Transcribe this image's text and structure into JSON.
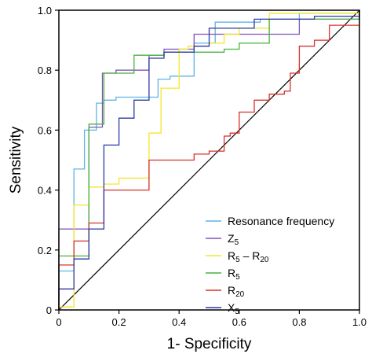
{
  "chart_data": {
    "type": "line",
    "xlabel": "1- Specificity",
    "ylabel": "Sensitivity",
    "xlim": [
      0,
      1
    ],
    "ylim": [
      0,
      1
    ],
    "xticks": [
      "0",
      "0.2",
      "0.4",
      "0.6",
      "0.8",
      "1.0"
    ],
    "yticks": [
      "0",
      "0.2",
      "0.4",
      "0.6",
      "0.8",
      "1.0"
    ],
    "grid": false,
    "legend_position": "bottom-right",
    "reference_line": {
      "x": [
        0,
        1
      ],
      "y": [
        0,
        1
      ],
      "color": "#000000"
    },
    "series": [
      {
        "name": "Resonance frequency",
        "legend_main": "Resonance frequency",
        "legend_sub": "",
        "color": "#5fb3e6",
        "x": [
          0,
          0,
          0.05,
          0.05,
          0.085,
          0.085,
          0.125,
          0.125,
          0.15,
          0.15,
          0.19,
          0.19,
          0.33,
          0.33,
          0.37,
          0.37,
          0.45,
          0.45,
          0.52,
          0.52,
          0.67,
          0.67,
          0.8,
          0.8,
          1.0,
          1.0
        ],
        "y": [
          0,
          0.13,
          0.13,
          0.47,
          0.47,
          0.6,
          0.6,
          0.69,
          0.69,
          0.7,
          0.7,
          0.71,
          0.71,
          0.77,
          0.77,
          0.78,
          0.78,
          0.89,
          0.89,
          0.96,
          0.96,
          0.97,
          0.97,
          0.99,
          0.99,
          1.0
        ]
      },
      {
        "name": "Z5",
        "legend_main": "Z",
        "legend_sub": "5",
        "color": "#8052b8",
        "x": [
          0,
          0,
          0.1,
          0.1,
          0.145,
          0.145,
          0.19,
          0.19,
          0.3,
          0.3,
          0.35,
          0.35,
          0.45,
          0.45,
          0.8,
          0.8,
          1.0,
          1.0
        ],
        "y": [
          0,
          0.27,
          0.27,
          0.61,
          0.61,
          0.79,
          0.79,
          0.8,
          0.8,
          0.85,
          0.85,
          0.87,
          0.87,
          0.92,
          0.92,
          0.97,
          0.97,
          1.0
        ]
      },
      {
        "name": "R5 – R20",
        "legend_main": "R",
        "legend_sub": "5",
        "legend_main2": " – R",
        "legend_sub2": "20",
        "color": "#f5e52a",
        "x": [
          0,
          0,
          0.05,
          0.05,
          0.1,
          0.1,
          0.15,
          0.15,
          0.2,
          0.2,
          0.3,
          0.3,
          0.34,
          0.34,
          0.4,
          0.4,
          0.43,
          0.43,
          0.5,
          0.5,
          0.55,
          0.55,
          0.6,
          0.6,
          0.7,
          0.7,
          1.0,
          1.0
        ],
        "y": [
          0,
          0.01,
          0.01,
          0.35,
          0.35,
          0.41,
          0.41,
          0.42,
          0.42,
          0.44,
          0.44,
          0.59,
          0.59,
          0.74,
          0.74,
          0.87,
          0.87,
          0.88,
          0.88,
          0.89,
          0.89,
          0.92,
          0.92,
          0.94,
          0.94,
          0.99,
          0.99,
          1.0
        ]
      },
      {
        "name": "R5",
        "legend_main": "R",
        "legend_sub": "5",
        "color": "#47b23e",
        "x": [
          0,
          0,
          0.1,
          0.1,
          0.15,
          0.15,
          0.25,
          0.25,
          0.35,
          0.35,
          0.55,
          0.55,
          0.6,
          0.6,
          0.7,
          0.7,
          1.0,
          1.0
        ],
        "y": [
          0,
          0.18,
          0.18,
          0.62,
          0.62,
          0.79,
          0.79,
          0.85,
          0.85,
          0.86,
          0.86,
          0.87,
          0.87,
          0.89,
          0.89,
          0.97,
          0.97,
          1.0
        ]
      },
      {
        "name": "R20",
        "legend_main": "R",
        "legend_sub": "20",
        "color": "#d6312c",
        "x": [
          0,
          0,
          0.05,
          0.05,
          0.1,
          0.1,
          0.15,
          0.15,
          0.25,
          0.25,
          0.3,
          0.3,
          0.45,
          0.45,
          0.5,
          0.5,
          0.55,
          0.55,
          0.57,
          0.57,
          0.6,
          0.6,
          0.65,
          0.65,
          0.7,
          0.7,
          0.75,
          0.75,
          0.77,
          0.77,
          0.8,
          0.8,
          0.85,
          0.85,
          0.9,
          0.9,
          0.95,
          0.95,
          1.0
        ],
        "y": [
          0,
          0.15,
          0.15,
          0.23,
          0.23,
          0.29,
          0.29,
          0.4,
          0.4,
          0.4,
          0.4,
          0.5,
          0.5,
          0.52,
          0.52,
          0.53,
          0.53,
          0.58,
          0.58,
          0.59,
          0.59,
          0.66,
          0.66,
          0.7,
          0.7,
          0.72,
          0.72,
          0.73,
          0.73,
          0.79,
          0.79,
          0.88,
          0.88,
          0.9,
          0.9,
          0.95,
          0.95,
          0.95,
          0.95
        ]
      },
      {
        "name": "X5",
        "legend_main": "X",
        "legend_sub": "5",
        "color": "#2d3aa6",
        "x": [
          0,
          0,
          0.05,
          0.05,
          0.1,
          0.1,
          0.15,
          0.15,
          0.2,
          0.2,
          0.25,
          0.25,
          0.3,
          0.3,
          0.35,
          0.35,
          0.45,
          0.45,
          0.5,
          0.5,
          0.65,
          0.65,
          0.85,
          0.85,
          1.0,
          1.0
        ],
        "y": [
          0,
          0.07,
          0.07,
          0.17,
          0.17,
          0.27,
          0.27,
          0.55,
          0.55,
          0.64,
          0.64,
          0.7,
          0.7,
          0.84,
          0.84,
          0.86,
          0.86,
          0.88,
          0.88,
          0.94,
          0.94,
          0.97,
          0.97,
          0.98,
          0.98,
          1.0
        ]
      }
    ]
  }
}
